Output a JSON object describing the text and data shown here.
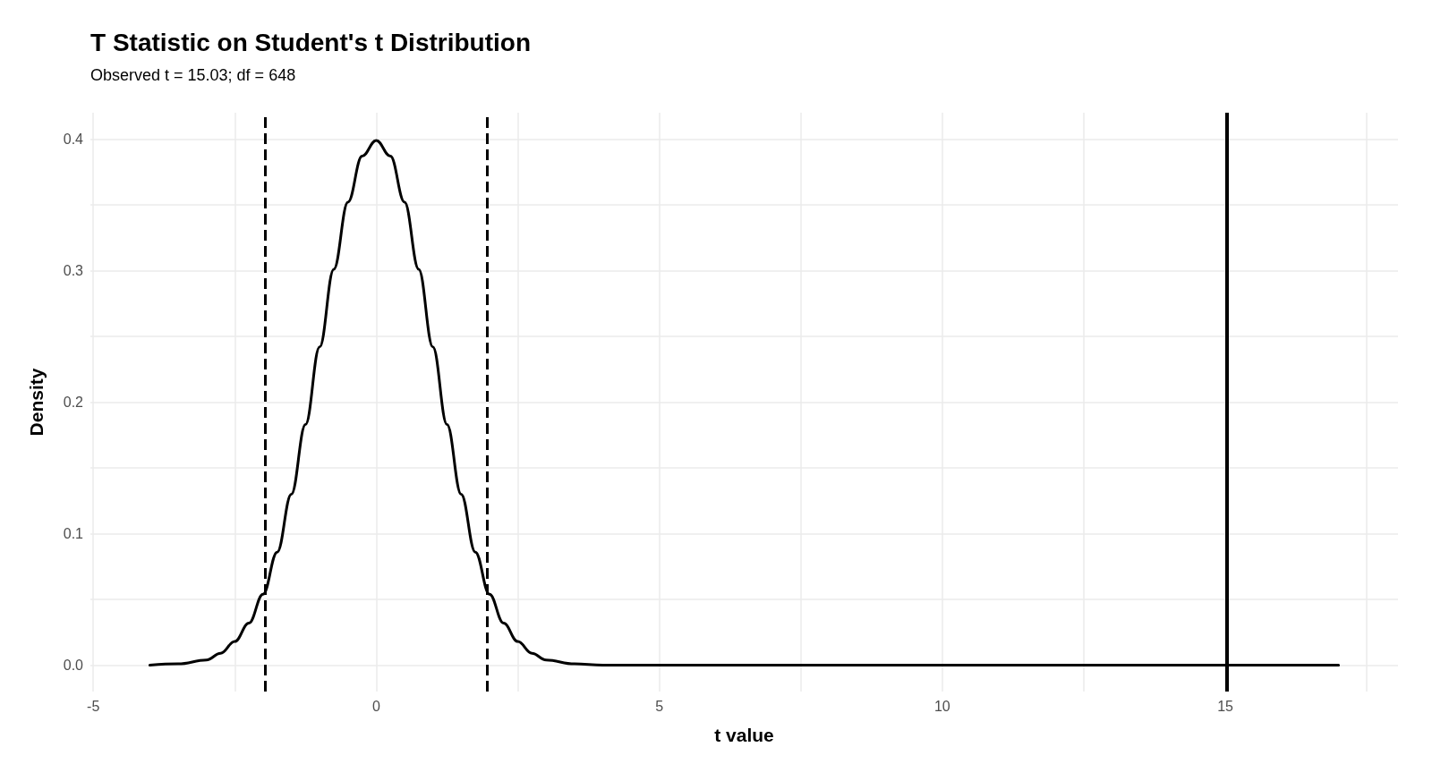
{
  "chart_data": {
    "type": "line",
    "title": "T Statistic on Student's t Distribution",
    "subtitle": "Observed t = 15.03; df = 648",
    "xlabel": "t value",
    "ylabel": "Density",
    "x": [
      -4,
      -3.5,
      -3,
      -2.75,
      -2.5,
      -2.25,
      -2,
      -1.75,
      -1.5,
      -1.25,
      -1,
      -0.75,
      -0.5,
      -0.25,
      0,
      0.25,
      0.5,
      0.75,
      1,
      1.25,
      1.5,
      1.75,
      2,
      2.25,
      2.5,
      2.75,
      3,
      3.5,
      4,
      5,
      7,
      9,
      11,
      13,
      15,
      17
    ],
    "series": [
      {
        "color": "#000000",
        "values": [
          0.0,
          0.001,
          0.004,
          0.009,
          0.018,
          0.032,
          0.054,
          0.086,
          0.13,
          0.183,
          0.242,
          0.301,
          0.352,
          0.387,
          0.399,
          0.387,
          0.352,
          0.301,
          0.242,
          0.183,
          0.13,
          0.086,
          0.054,
          0.032,
          0.018,
          0.009,
          0.004,
          0.001,
          0.0,
          0.0,
          0.0,
          0.0,
          0.0,
          0.0,
          0.0,
          0.0
        ]
      }
    ],
    "xlim": [
      -5.05,
      18.05
    ],
    "xticks": [
      -5,
      {
        "value": -2.5,
        "label": null
      },
      0,
      {
        "value": 2.5,
        "label": null
      },
      5,
      {
        "value": 7.5,
        "label": null
      },
      10,
      {
        "value": 12.5,
        "label": null
      },
      15,
      {
        "value": 17.5,
        "label": null
      }
    ],
    "ylim": [
      -0.02,
      0.42
    ],
    "yticks": [
      {
        "value": 0,
        "label": "0.0"
      },
      {
        "value": 0.05,
        "label": null
      },
      0.1,
      {
        "value": 0.15,
        "label": null
      },
      0.2,
      {
        "value": 0.25,
        "label": null
      },
      0.3,
      {
        "value": 0.35,
        "label": null
      },
      0.4
    ],
    "ref_lines": [
      {
        "axis": "x",
        "value": -1.96,
        "line_style": "dashed",
        "color": "#000000"
      },
      {
        "axis": "x",
        "value": 1.96,
        "line_style": "dashed",
        "color": "#000000"
      },
      {
        "axis": "x",
        "value": 15.03,
        "line_style": "solid",
        "color": "#000000"
      }
    ],
    "grid": true,
    "marker": "none",
    "line_style": "solid"
  }
}
